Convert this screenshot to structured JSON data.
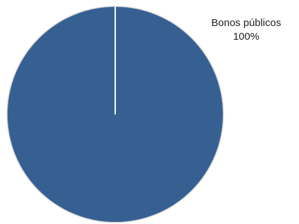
{
  "chart_data": {
    "type": "pie",
    "categories": [
      "Bonos públicos"
    ],
    "values": [
      100
    ],
    "data_labels": [
      {
        "category": "Bonos públicos",
        "percent": "100%"
      }
    ],
    "colors": [
      "#376092"
    ],
    "edge_color": "#ffffff",
    "legend": "none"
  }
}
